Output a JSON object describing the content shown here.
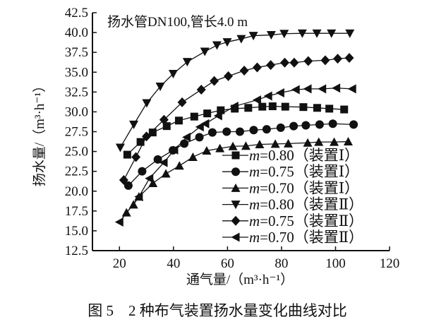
{
  "chart_data": {
    "type": "line",
    "title": "扬水管DN100,管长4.0 m",
    "caption": "图 5　2 种布气装置扬水量变化曲线对比",
    "xlabel": "通气量/（m³·h⁻¹）",
    "ylabel": "扬水量/（m³·h⁻¹）",
    "xlim": [
      10,
      120
    ],
    "ylim": [
      12.5,
      42.5
    ],
    "xticks": [
      20,
      40,
      60,
      80,
      100,
      120
    ],
    "yticks": [
      "12.5",
      "15.0",
      "17.5",
      "20.0",
      "22.5",
      "25.0",
      "27.5",
      "30.0",
      "32.5",
      "35.0",
      "37.5",
      "40.0",
      "42.5"
    ],
    "grid": false,
    "legend_placement": "bottom-right",
    "line_color": "#111111",
    "series": [
      {
        "name": "m=0.80（装置Ⅰ）",
        "m": "m",
        "rest": "=0.80（装置Ⅰ）",
        "marker": "square",
        "x": [
          22.9,
          27.8,
          32.3,
          37.5,
          42.0,
          47.7,
          52.5,
          57.5,
          62.7,
          67.7,
          72.9,
          76.7,
          81.4,
          88.1,
          93.2,
          97.7,
          103.2
        ],
        "y": [
          24.6,
          26.2,
          27.4,
          28.2,
          28.9,
          29.4,
          29.8,
          30.2,
          30.4,
          30.5,
          30.65,
          30.7,
          30.65,
          30.6,
          30.5,
          30.4,
          30.3
        ]
      },
      {
        "name": "m=0.75（装置Ⅰ）",
        "m": "m",
        "rest": "=0.75（装置Ⅰ）",
        "marker": "circle",
        "x": [
          23.3,
          28.4,
          34.2,
          39.8,
          44.0,
          49.6,
          54.4,
          59.7,
          64.6,
          69.7,
          74.5,
          79.7,
          84.5,
          89.0,
          94.1,
          99.0,
          106.7
        ],
        "y": [
          20.7,
          22.5,
          24.0,
          25.15,
          26.0,
          26.8,
          27.4,
          27.5,
          27.5,
          27.7,
          27.8,
          28.0,
          28.2,
          28.3,
          28.4,
          28.5,
          28.4
        ]
      },
      {
        "name": "m=0.70（装置Ⅰ）",
        "m": "m",
        "rest": "=0.70（装置Ⅰ）",
        "marker": "triangle-up",
        "x": [
          22.6,
          25.2,
          27.2,
          32.4,
          37.2,
          42.2,
          47.2,
          52.3,
          57.2,
          62.0,
          66.8,
          71.9,
          77.7,
          82.5,
          89.7,
          93.8,
          99.5,
          104.7
        ],
        "y": [
          17.3,
          18.3,
          19.3,
          21.0,
          22.2,
          23.2,
          24.3,
          25.1,
          25.4,
          25.65,
          25.7,
          25.9,
          25.95,
          26.0,
          26.1,
          26.2,
          26.2,
          26.25
        ]
      },
      {
        "name": "m=0.80（装置Ⅱ）",
        "m": "m",
        "rest": "=0.80（装置Ⅱ）",
        "marker": "triangle-down",
        "x": [
          20.3,
          25.3,
          30.1,
          35.1,
          39.9,
          45.1,
          51.6,
          56.1,
          59.9,
          65.1,
          69.6,
          76.2,
          81.0,
          87.7,
          93.1,
          98.5,
          105.3
        ],
        "y": [
          25.5,
          28.4,
          31.1,
          33.2,
          34.8,
          36.3,
          37.6,
          38.4,
          38.8,
          39.2,
          39.6,
          39.7,
          39.85,
          39.9,
          39.9,
          39.9,
          39.9
        ]
      },
      {
        "name": "m=0.75（装置Ⅱ）",
        "m": "m",
        "rest": "=0.75（装置Ⅱ）",
        "marker": "diamond",
        "x": [
          21.6,
          26.1,
          30.0,
          36.5,
          43.2,
          50.3,
          55.1,
          60.3,
          66.2,
          71.0,
          76.0,
          81.2,
          84.7,
          89.9,
          96.2,
          100.8,
          105.1
        ],
        "y": [
          21.4,
          24.3,
          26.9,
          29.0,
          31.2,
          32.8,
          33.9,
          34.5,
          35.2,
          35.6,
          35.9,
          36.2,
          36.2,
          36.4,
          36.5,
          36.7,
          36.8
        ]
      },
      {
        "name": "m=0.70（装置Ⅱ）",
        "m": "m",
        "rest": "=0.70（装置Ⅱ）",
        "marker": "triangle-left",
        "x": [
          20.0,
          27.2,
          31.1,
          36.4,
          40.3,
          44.9,
          49.8,
          51.8,
          56.6,
          62.6,
          71.0,
          75.1,
          79.6,
          85.3,
          89.7,
          95.1,
          100.3,
          106.2
        ],
        "y": [
          16.1,
          19.3,
          21.6,
          23.6,
          25.2,
          26.8,
          28.1,
          28.5,
          29.5,
          30.7,
          31.5,
          32.0,
          32.4,
          32.8,
          32.9,
          32.9,
          33.0,
          32.9
        ]
      }
    ]
  }
}
